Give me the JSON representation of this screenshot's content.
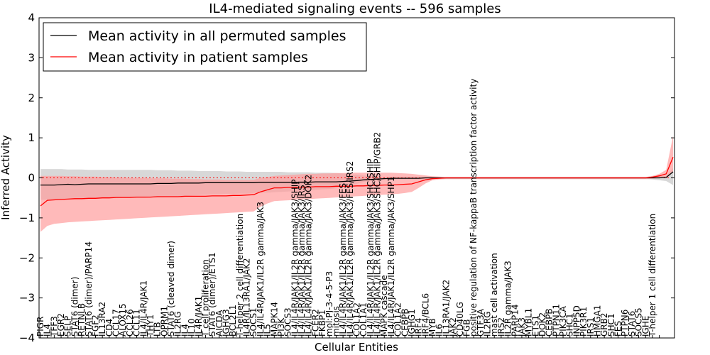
{
  "chart_data": {
    "type": "line",
    "title": "IL4-mediated signaling events -- 596 samples",
    "xlabel": "Cellular Entities",
    "ylabel": "Inferred Activity",
    "ylim": [
      -4,
      4
    ],
    "yticks": [
      -4,
      -3,
      -2,
      -1,
      0,
      1,
      2,
      3,
      4
    ],
    "grid": false,
    "legend_position": "top-left",
    "series": [
      {
        "name": "Mean activity in all permuted samples",
        "color": "#000000",
        "band_color": "#c8c8c8",
        "mean": [
          -0.18,
          -0.18,
          -0.18,
          -0.17,
          -0.16,
          -0.17,
          -0.16,
          -0.15,
          -0.15,
          -0.15,
          -0.15,
          -0.15,
          -0.15,
          -0.15,
          -0.15,
          -0.15,
          -0.15,
          -0.14,
          -0.14,
          -0.14,
          -0.13,
          -0.13,
          -0.13,
          -0.13,
          -0.12,
          -0.12,
          -0.12,
          -0.12,
          -0.12,
          -0.12,
          -0.12,
          -0.12,
          -0.11,
          -0.11,
          -0.11,
          -0.11,
          -0.11,
          -0.11,
          -0.11,
          -0.11,
          -0.1,
          -0.1,
          -0.1,
          -0.1,
          -0.09,
          -0.08,
          -0.07,
          -0.05,
          -0.04,
          -0.03,
          -0.02,
          -0.01,
          -0.01,
          -0.01,
          -0.01,
          -0.01,
          0,
          0,
          0,
          0,
          0,
          0,
          0,
          0,
          0,
          0,
          0,
          0,
          0,
          0,
          0,
          0,
          0,
          0,
          0,
          0,
          0,
          0,
          0,
          0,
          0,
          0,
          0,
          0,
          0,
          0,
          0,
          0,
          0,
          0,
          0,
          0.01,
          0.15
        ],
        "upper": [
          0.22,
          0.22,
          0.22,
          0.22,
          0.21,
          0.21,
          0.21,
          0.2,
          0.2,
          0.2,
          0.2,
          0.2,
          0.2,
          0.2,
          0.2,
          0.2,
          0.2,
          0.19,
          0.19,
          0.19,
          0.18,
          0.18,
          0.18,
          0.17,
          0.17,
          0.17,
          0.17,
          0.16,
          0.16,
          0.16,
          0.15,
          0.15,
          0.15,
          0.15,
          0.15,
          0.15,
          0.14,
          0.14,
          0.14,
          0.14,
          0.13,
          0.13,
          0.13,
          0.12,
          0.11,
          0.09,
          0.08,
          0.06,
          0.04,
          0.03,
          0.02,
          0.02,
          0.02,
          0.02,
          0.02,
          0.02,
          0.02,
          0.02,
          0.02,
          0.02,
          0.02,
          0.02,
          0.02,
          0.02,
          0.02,
          0.02,
          0.02,
          0.02,
          0.02,
          0.02,
          0.02,
          0.02,
          0.02,
          0.02,
          0.02,
          0.02,
          0.02,
          0.02,
          0.02,
          0.02,
          0.02,
          0.02,
          0.02,
          0.02,
          0.02,
          0.02,
          0.02,
          0.02,
          0.02,
          0.03,
          0.04,
          0.05,
          0.25
        ],
        "lower": [
          -0.55,
          -0.55,
          -0.55,
          -0.55,
          -0.54,
          -0.54,
          -0.53,
          -0.52,
          -0.52,
          -0.51,
          -0.51,
          -0.51,
          -0.5,
          -0.5,
          -0.5,
          -0.5,
          -0.49,
          -0.49,
          -0.48,
          -0.47,
          -0.46,
          -0.45,
          -0.44,
          -0.43,
          -0.42,
          -0.41,
          -0.41,
          -0.4,
          -0.4,
          -0.39,
          -0.39,
          -0.38,
          -0.37,
          -0.37,
          -0.36,
          -0.35,
          -0.34,
          -0.33,
          -0.32,
          -0.31,
          -0.3,
          -0.29,
          -0.28,
          -0.26,
          -0.22,
          -0.18,
          -0.15,
          -0.1,
          -0.07,
          -0.05,
          -0.04,
          -0.04,
          -0.04,
          -0.04,
          -0.04,
          -0.04,
          -0.03,
          -0.03,
          -0.03,
          -0.03,
          -0.03,
          -0.03,
          -0.03,
          -0.03,
          -0.03,
          -0.03,
          -0.03,
          -0.03,
          -0.03,
          -0.03,
          -0.03,
          -0.03,
          -0.03,
          -0.03,
          -0.03,
          -0.03,
          -0.03,
          -0.03,
          -0.03,
          -0.03,
          -0.03,
          -0.03,
          -0.03,
          -0.03,
          -0.03,
          -0.03,
          -0.03,
          -0.03,
          -0.03,
          -0.04,
          -0.06,
          -0.08,
          -0.18
        ]
      },
      {
        "name": "Mean activity in patient samples",
        "color": "#ff0000",
        "band_color": "#ff9c9c",
        "mean": [
          -0.7,
          -0.56,
          -0.55,
          -0.54,
          -0.53,
          -0.52,
          -0.52,
          -0.51,
          -0.51,
          -0.5,
          -0.5,
          -0.49,
          -0.49,
          -0.49,
          -0.48,
          -0.48,
          -0.48,
          -0.47,
          -0.47,
          -0.47,
          -0.47,
          -0.46,
          -0.46,
          -0.46,
          -0.46,
          -0.45,
          -0.45,
          -0.45,
          -0.44,
          -0.44,
          -0.43,
          -0.42,
          -0.35,
          -0.3,
          -0.25,
          -0.25,
          -0.24,
          -0.24,
          -0.23,
          -0.23,
          -0.22,
          -0.22,
          -0.22,
          -0.21,
          -0.21,
          -0.21,
          -0.2,
          -0.2,
          -0.19,
          -0.19,
          -0.18,
          -0.18,
          -0.17,
          -0.16,
          -0.15,
          -0.1,
          -0.05,
          -0.02,
          -0.01,
          0,
          0,
          0,
          0,
          0,
          0,
          0,
          0,
          0,
          0,
          0,
          0,
          0,
          0,
          0,
          0,
          0,
          0,
          0,
          0,
          0,
          0,
          0,
          0,
          0,
          0,
          0,
          0,
          0,
          0,
          0.02,
          0.05,
          0.1,
          0.52
        ],
        "upper": [
          0.05,
          0.05,
          0.05,
          0.05,
          0.04,
          0.04,
          0.03,
          0.03,
          0.03,
          0.02,
          0.02,
          0.01,
          0.01,
          0,
          0,
          0,
          -0.01,
          -0.01,
          -0.01,
          -0.02,
          -0.02,
          -0.02,
          -0.03,
          -0.03,
          -0.04,
          -0.04,
          -0.04,
          -0.05,
          -0.05,
          -0.05,
          -0.05,
          -0.05,
          0,
          0.02,
          0.05,
          0.06,
          0.07,
          0.08,
          0.09,
          0.1,
          0.1,
          0.11,
          0.11,
          0.12,
          0.12,
          0.13,
          0.13,
          0.13,
          0.13,
          0.13,
          0.13,
          0.13,
          0.12,
          0.11,
          0.1,
          0.08,
          0.06,
          0.04,
          0.03,
          0.02,
          0.02,
          0.02,
          0.02,
          0.02,
          0.02,
          0.02,
          0.02,
          0.02,
          0.02,
          0.02,
          0.02,
          0.02,
          0.02,
          0.02,
          0.02,
          0.02,
          0.02,
          0.02,
          0.02,
          0.02,
          0.02,
          0.02,
          0.02,
          0.02,
          0.02,
          0.02,
          0.02,
          0.02,
          0.02,
          0.05,
          0.1,
          0.2,
          1.05
        ],
        "lower": [
          -1.35,
          -1.2,
          -1.15,
          -1.13,
          -1.11,
          -1.1,
          -1.09,
          -1.08,
          -1.07,
          -1.06,
          -1.05,
          -1.04,
          -1.03,
          -1.02,
          -1.01,
          -1,
          -0.99,
          -0.98,
          -0.97,
          -0.96,
          -0.95,
          -0.94,
          -0.93,
          -0.92,
          -0.91,
          -0.9,
          -0.89,
          -0.88,
          -0.87,
          -0.86,
          -0.85,
          -0.84,
          -0.72,
          -0.64,
          -0.58,
          -0.57,
          -0.56,
          -0.55,
          -0.54,
          -0.53,
          -0.52,
          -0.51,
          -0.5,
          -0.49,
          -0.48,
          -0.47,
          -0.46,
          -0.45,
          -0.44,
          -0.43,
          -0.42,
          -0.41,
          -0.4,
          -0.38,
          -0.35,
          -0.25,
          -0.14,
          -0.06,
          -0.04,
          -0.03,
          -0.03,
          -0.03,
          -0.03,
          -0.03,
          -0.03,
          -0.03,
          -0.03,
          -0.03,
          -0.03,
          -0.03,
          -0.03,
          -0.03,
          -0.03,
          -0.03,
          -0.03,
          -0.03,
          -0.03,
          -0.03,
          -0.03,
          -0.03,
          -0.03,
          -0.03,
          -0.03,
          -0.03,
          -0.03,
          -0.03,
          -0.03,
          -0.03,
          -0.03,
          -0.02,
          -0.01,
          0,
          0.15
        ]
      }
    ],
    "x_labels": [
      "PIGR",
      "IL4",
      "TFF3",
      "EGR2",
      "SELP",
      "STAT6 (dimer)",
      "RETNLB",
      "STAT6 (dimer)/PARP14",
      "FGF2",
      "IL13RA2",
      "CD4",
      "CCL17",
      "ALOX15",
      "CCL26",
      "CCL11",
      "IL4/IL4R/JAK1",
      "THY1",
      "LTB",
      "OPRM1",
      "STAT6 (cleaved dimer)",
      "IL2RG",
      "IL4",
      "IL10",
      "IL4R/JAK1",
      "T cell proliferation",
      "STAT6 (dimer)/ETS1",
      "AICDA",
      "IGHG3",
      "BCL2L1",
      "T-helper 2 cell differentiation",
      "IL4R/IL13RA1/JAK2",
      "SOCS1",
      "IL4/IL4R/JAK1/IL2R gamma/JAK3",
      "IL5",
      "MAPK14",
      "PI3K",
      "SOCS3",
      "IL4/IL4R/JAK1/IL2R gamma/JAK3/SHIP",
      "IL4/IL4R/JAK1/IL2R gamma/JAK3/IRS1",
      "IL4/IL4R/JAK1/IL2R gamma/JAK3/DOK2",
      "FCER2",
      "FKBP1",
      "mol:PI-3-4-5-P3",
      "mitosis",
      "IL4/IL4R/JAK1/IL2R gamma/JAK3/FES",
      "IL4/IL4R/JAK1/IL2R gamma/JAK3/FES/IRS2",
      "COL1A2",
      "COL1A1",
      "IL4/IL4R/JAK1/IL2R gamma/JAK3/SHC/SHIP",
      "IL4/IL4R/JAK1/IL2R gamma/JAK3/SHC/SHIP/GRB2",
      "MAPK cascade",
      "IL4/IL4R/JAK1/IL2R gamma/JAK3/SHP1",
      "COL1A2",
      "CEBPB",
      "IGHG1",
      "IRF4",
      "IRF4/BCL6",
      "MYB",
      "IL6",
      "IL13RA1/JAK2",
      "JAK2",
      "CD40LG",
      "FGB",
      "positive regulation of NF-kappaB transcription factor activity",
      "GTF3A",
      "IL2RG",
      "mast cell activation",
      "IRS2",
      "IL2R gamma/JAK3",
      "PARP14",
      "JAK3",
      "MYBL1",
      "ETS1",
      "DOK2",
      "CEBPB",
      "PTPN11",
      "PIK3CA",
      "SHC1",
      "INPP5D",
      "PIK3R1",
      "IRS1",
      "HMGA1",
      "GRB2",
      "SHC1",
      "FES",
      "PTPN6",
      "STAT6",
      "SOCS5",
      "IGHE",
      "T-helper 1 cell differentiation",
      ""
    ]
  }
}
